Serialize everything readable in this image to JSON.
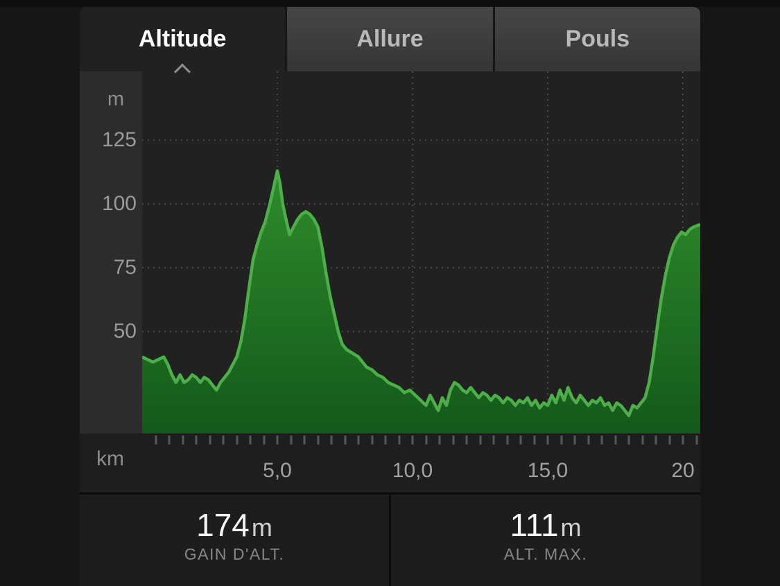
{
  "tabs": [
    {
      "label": "Altitude",
      "active": true
    },
    {
      "label": "Allure",
      "active": false
    },
    {
      "label": "Pouls",
      "active": false
    }
  ],
  "chart_data": {
    "type": "area",
    "series_name": "altitude",
    "y_unit": "m",
    "x_unit": "km",
    "ylim": [
      10,
      152
    ],
    "xlim": [
      0,
      20.64
    ],
    "y_ticks": [
      125,
      100,
      75,
      50
    ],
    "x_ticks": [
      {
        "km": 5,
        "label": "5,0"
      },
      {
        "km": 10,
        "label": "10,0"
      },
      {
        "km": 15,
        "label": "15,0"
      },
      {
        "km": 20,
        "label": "20"
      }
    ],
    "minor_tick_step_km": 0.5,
    "grid": "dashed",
    "colors": {
      "line": "#4fae4b",
      "fill_top": "#2e8c2c",
      "fill_bottom": "#14591a",
      "grid": "#4a4a4a"
    },
    "points": [
      [
        0.0,
        40
      ],
      [
        0.2,
        39
      ],
      [
        0.4,
        38
      ],
      [
        0.6,
        39
      ],
      [
        0.8,
        40
      ],
      [
        0.95,
        37
      ],
      [
        1.1,
        33
      ],
      [
        1.25,
        30
      ],
      [
        1.4,
        33
      ],
      [
        1.55,
        30
      ],
      [
        1.7,
        31
      ],
      [
        1.85,
        33
      ],
      [
        2.0,
        32
      ],
      [
        2.15,
        30
      ],
      [
        2.3,
        32
      ],
      [
        2.45,
        31
      ],
      [
        2.6,
        29
      ],
      [
        2.75,
        27
      ],
      [
        2.9,
        30
      ],
      [
        3.05,
        32
      ],
      [
        3.2,
        34
      ],
      [
        3.35,
        37
      ],
      [
        3.5,
        40
      ],
      [
        3.65,
        46
      ],
      [
        3.8,
        55
      ],
      [
        3.95,
        67
      ],
      [
        4.1,
        78
      ],
      [
        4.25,
        84
      ],
      [
        4.4,
        89
      ],
      [
        4.55,
        93
      ],
      [
        4.7,
        99
      ],
      [
        4.85,
        106
      ],
      [
        5.0,
        113
      ],
      [
        5.1,
        108
      ],
      [
        5.2,
        100
      ],
      [
        5.3,
        95
      ],
      [
        5.45,
        88
      ],
      [
        5.6,
        91
      ],
      [
        5.75,
        94
      ],
      [
        5.9,
        96
      ],
      [
        6.05,
        97
      ],
      [
        6.2,
        96
      ],
      [
        6.35,
        94
      ],
      [
        6.5,
        91
      ],
      [
        6.65,
        83
      ],
      [
        6.8,
        73
      ],
      [
        6.95,
        64
      ],
      [
        7.1,
        57
      ],
      [
        7.25,
        50
      ],
      [
        7.4,
        45
      ],
      [
        7.55,
        43
      ],
      [
        7.7,
        42
      ],
      [
        7.85,
        41
      ],
      [
        8.0,
        40
      ],
      [
        8.15,
        38
      ],
      [
        8.3,
        36
      ],
      [
        8.5,
        35
      ],
      [
        8.7,
        33
      ],
      [
        8.9,
        32
      ],
      [
        9.1,
        30
      ],
      [
        9.3,
        29
      ],
      [
        9.5,
        28
      ],
      [
        9.7,
        26
      ],
      [
        9.9,
        27
      ],
      [
        10.1,
        25
      ],
      [
        10.3,
        23
      ],
      [
        10.5,
        21
      ],
      [
        10.65,
        25
      ],
      [
        10.8,
        22
      ],
      [
        10.95,
        19
      ],
      [
        11.1,
        24
      ],
      [
        11.25,
        21
      ],
      [
        11.4,
        27
      ],
      [
        11.55,
        30
      ],
      [
        11.7,
        29
      ],
      [
        11.85,
        27
      ],
      [
        12.0,
        26
      ],
      [
        12.15,
        28
      ],
      [
        12.3,
        26
      ],
      [
        12.45,
        24
      ],
      [
        12.6,
        26
      ],
      [
        12.75,
        25
      ],
      [
        12.9,
        23
      ],
      [
        13.05,
        25
      ],
      [
        13.2,
        24
      ],
      [
        13.35,
        22
      ],
      [
        13.5,
        24
      ],
      [
        13.65,
        23
      ],
      [
        13.8,
        21
      ],
      [
        13.95,
        23
      ],
      [
        14.1,
        22
      ],
      [
        14.25,
        24
      ],
      [
        14.4,
        21
      ],
      [
        14.55,
        23
      ],
      [
        14.7,
        20
      ],
      [
        14.85,
        22
      ],
      [
        15.0,
        21
      ],
      [
        15.15,
        25
      ],
      [
        15.3,
        22
      ],
      [
        15.45,
        27
      ],
      [
        15.6,
        23
      ],
      [
        15.75,
        28
      ],
      [
        15.9,
        24
      ],
      [
        16.05,
        22
      ],
      [
        16.2,
        25
      ],
      [
        16.35,
        23
      ],
      [
        16.5,
        21
      ],
      [
        16.65,
        23
      ],
      [
        16.8,
        22
      ],
      [
        16.95,
        24
      ],
      [
        17.1,
        21
      ],
      [
        17.25,
        22
      ],
      [
        17.4,
        19
      ],
      [
        17.55,
        22
      ],
      [
        17.7,
        21
      ],
      [
        17.85,
        19
      ],
      [
        18.0,
        17
      ],
      [
        18.15,
        21
      ],
      [
        18.3,
        20
      ],
      [
        18.45,
        22
      ],
      [
        18.6,
        24
      ],
      [
        18.75,
        30
      ],
      [
        18.9,
        40
      ],
      [
        19.05,
        52
      ],
      [
        19.2,
        63
      ],
      [
        19.35,
        72
      ],
      [
        19.5,
        79
      ],
      [
        19.65,
        84
      ],
      [
        19.8,
        87
      ],
      [
        19.95,
        89
      ],
      [
        20.1,
        88
      ],
      [
        20.25,
        90
      ],
      [
        20.4,
        91
      ],
      [
        20.64,
        92
      ]
    ]
  },
  "stats": [
    {
      "value": "174",
      "unit": "m",
      "caption": "GAIN D'ALT."
    },
    {
      "value": "111",
      "unit": "m",
      "caption": "ALT. MAX."
    }
  ]
}
